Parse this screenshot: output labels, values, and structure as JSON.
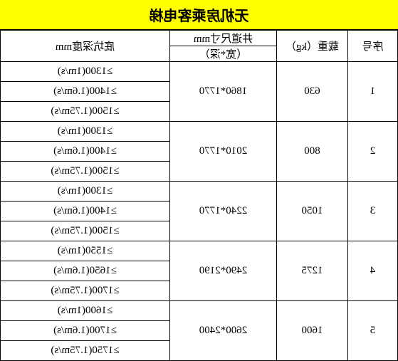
{
  "title": "无机房乘客电梯",
  "headers": {
    "seq": "序号",
    "load": "载重（kg）",
    "dim_top": "井道尺寸mm",
    "dim_bot": "（宽*深）",
    "depth": "底坑深度mm"
  },
  "title_bg": "#ffff00",
  "border_color": "#000000",
  "rows": [
    {
      "seq": "1",
      "load": "630",
      "dim": "1860*1770",
      "depths": [
        "≥1300(1m/s)",
        "≥1400(1.6m/s)",
        "≥1500(1.75m/s)"
      ]
    },
    {
      "seq": "2",
      "load": "800",
      "dim": "2010*1770",
      "depths": [
        "≥1300(1m/s)",
        "≥1400(1.6m/s)",
        "≥1500(1.75m/s)"
      ]
    },
    {
      "seq": "3",
      "load": "1050",
      "dim": "2240*1770",
      "depths": [
        "≥1300(1m/s)",
        "≥1400(1.6m/s)",
        "≥1500(1.75m/s)"
      ]
    },
    {
      "seq": "4",
      "load": "1275",
      "dim": "2490*2190",
      "depths": [
        "≥1550(1m/s)",
        "≥1650(1.6m/s)",
        "≥1700(1.75m/s)"
      ]
    },
    {
      "seq": "5",
      "load": "1600",
      "dim": "2600*2400",
      "depths": [
        "≥1600(1m/s)",
        "≥1700(1.6m/s)",
        "≥1750(1.75m/s)"
      ]
    }
  ]
}
